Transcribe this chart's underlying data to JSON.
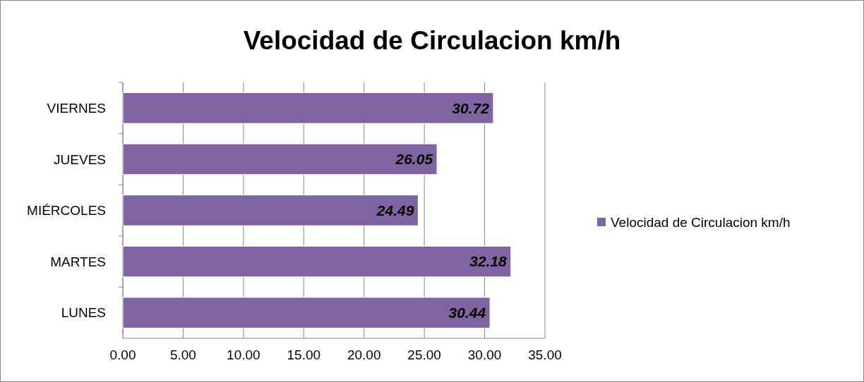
{
  "chart_data": {
    "type": "bar",
    "orientation": "horizontal",
    "title": "Velocidad de Circulacion km/h",
    "categories": [
      "VIERNES",
      "JUEVES",
      "MIÉRCOLES",
      "MARTES",
      "LUNES"
    ],
    "series": [
      {
        "name": "Velocidad de Circulacion km/h",
        "color": "#8064a2",
        "values": [
          30.72,
          26.05,
          24.49,
          32.18,
          30.44
        ]
      }
    ],
    "xlim": [
      0,
      35
    ],
    "xticks": [
      {
        "value": 0,
        "label": "0.00"
      },
      {
        "value": 5,
        "label": "5.00"
      },
      {
        "value": 10,
        "label": "10.00"
      },
      {
        "value": 15,
        "label": "15.00"
      },
      {
        "value": 20,
        "label": "20.00"
      },
      {
        "value": 25,
        "label": "25.00"
      },
      {
        "value": 30,
        "label": "30.00"
      },
      {
        "value": 35,
        "label": "35.00"
      }
    ],
    "grid": "x",
    "legend": "right",
    "data_labels": true
  }
}
